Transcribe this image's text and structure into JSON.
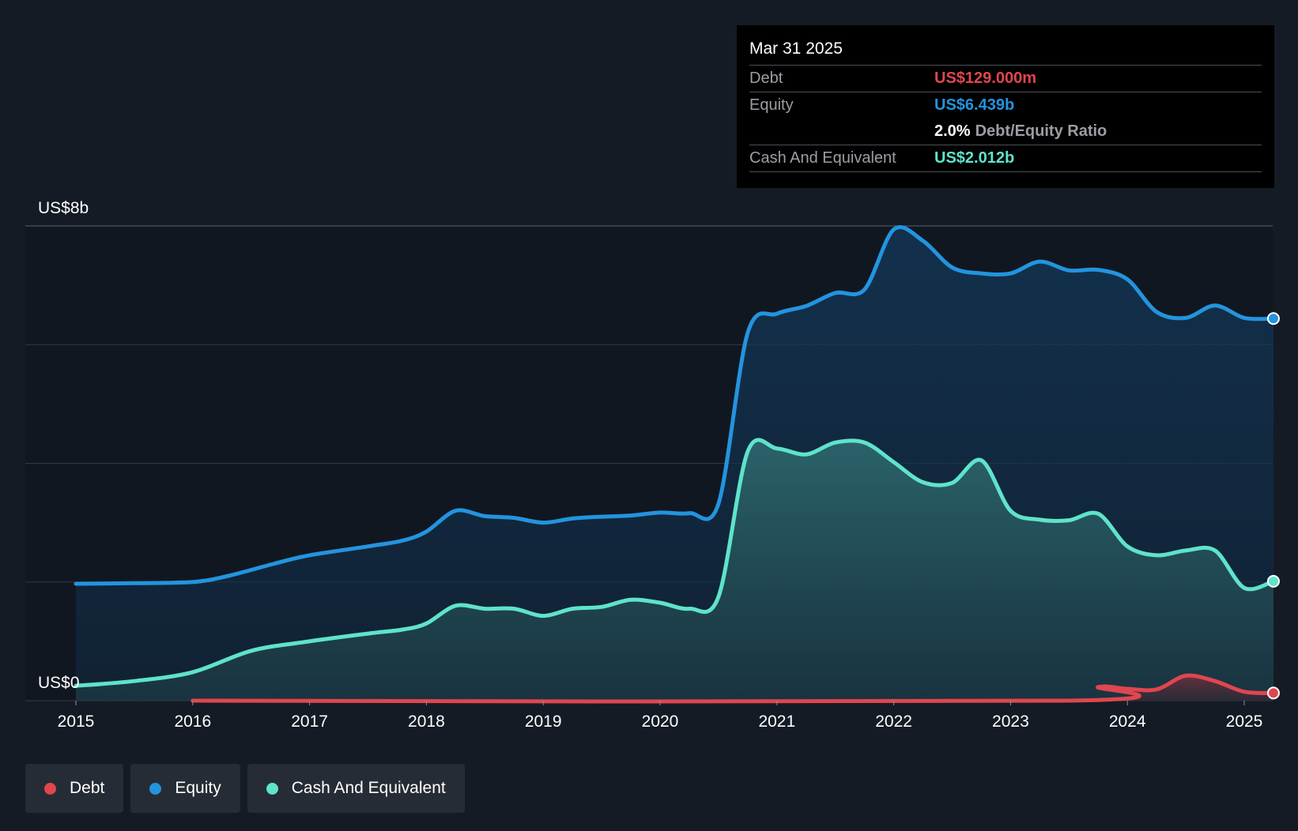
{
  "chart_data": {
    "type": "area",
    "title": "",
    "y_axis_labels": [
      "US$8b",
      "US$0"
    ],
    "ylim": [
      0,
      8
    ],
    "y_unit": "US$ billions",
    "xlim": [
      2015,
      2025.25
    ],
    "x_ticks": [
      "2015",
      "2016",
      "2017",
      "2018",
      "2019",
      "2020",
      "2021",
      "2022",
      "2023",
      "2024",
      "2025"
    ],
    "series": [
      {
        "name": "Equity",
        "color": "#2394df",
        "points": [
          [
            2015,
            1.97
          ],
          [
            2015.5,
            1.98
          ],
          [
            2016,
            2.0
          ],
          [
            2016.3,
            2.1
          ],
          [
            2016.7,
            2.31
          ],
          [
            2017,
            2.45
          ],
          [
            2017.5,
            2.6
          ],
          [
            2017.8,
            2.7
          ],
          [
            2018,
            2.85
          ],
          [
            2018.25,
            3.2
          ],
          [
            2018.5,
            3.11
          ],
          [
            2018.75,
            3.08
          ],
          [
            2019,
            3.0
          ],
          [
            2019.25,
            3.07
          ],
          [
            2019.5,
            3.1
          ],
          [
            2019.75,
            3.12
          ],
          [
            2020,
            3.17
          ],
          [
            2020.25,
            3.16
          ],
          [
            2020.5,
            3.32
          ],
          [
            2020.75,
            6.2
          ],
          [
            2021,
            6.52
          ],
          [
            2021.25,
            6.65
          ],
          [
            2021.5,
            6.87
          ],
          [
            2021.75,
            6.93
          ],
          [
            2022,
            7.94
          ],
          [
            2022.25,
            7.75
          ],
          [
            2022.5,
            7.3
          ],
          [
            2022.75,
            7.2
          ],
          [
            2023,
            7.2
          ],
          [
            2023.25,
            7.4
          ],
          [
            2023.5,
            7.25
          ],
          [
            2023.75,
            7.26
          ],
          [
            2024,
            7.1
          ],
          [
            2024.25,
            6.55
          ],
          [
            2024.5,
            6.45
          ],
          [
            2024.75,
            6.66
          ],
          [
            2025,
            6.45
          ],
          [
            2025.25,
            6.439
          ]
        ]
      },
      {
        "name": "Cash And Equivalent",
        "color": "#5fe3cb",
        "points": [
          [
            2015,
            0.25
          ],
          [
            2015.5,
            0.33
          ],
          [
            2016,
            0.48
          ],
          [
            2016.5,
            0.84
          ],
          [
            2017,
            1.0
          ],
          [
            2017.5,
            1.13
          ],
          [
            2017.8,
            1.2
          ],
          [
            2018,
            1.3
          ],
          [
            2018.25,
            1.6
          ],
          [
            2018.5,
            1.55
          ],
          [
            2018.75,
            1.55
          ],
          [
            2019,
            1.43
          ],
          [
            2019.25,
            1.55
          ],
          [
            2019.5,
            1.58
          ],
          [
            2019.75,
            1.7
          ],
          [
            2020,
            1.65
          ],
          [
            2020.25,
            1.55
          ],
          [
            2020.5,
            1.75
          ],
          [
            2020.75,
            4.2
          ],
          [
            2021,
            4.25
          ],
          [
            2021.25,
            4.15
          ],
          [
            2021.5,
            4.35
          ],
          [
            2021.75,
            4.35
          ],
          [
            2022,
            4.02
          ],
          [
            2022.25,
            3.68
          ],
          [
            2022.5,
            3.67
          ],
          [
            2022.75,
            4.05
          ],
          [
            2023,
            3.2
          ],
          [
            2023.25,
            3.05
          ],
          [
            2023.5,
            3.04
          ],
          [
            2023.75,
            3.15
          ],
          [
            2024,
            2.6
          ],
          [
            2024.25,
            2.45
          ],
          [
            2024.5,
            2.53
          ],
          [
            2024.75,
            2.53
          ],
          [
            2025,
            1.9
          ],
          [
            2025.25,
            2.012
          ]
        ]
      },
      {
        "name": "Debt",
        "color": "#e0464e",
        "points": [
          [
            2016,
            0.0
          ],
          [
            2023.5,
            0.0
          ],
          [
            2023.75,
            0.23
          ],
          [
            2024,
            0.2
          ],
          [
            2024.25,
            0.19
          ],
          [
            2024.5,
            0.42
          ],
          [
            2024.75,
            0.33
          ],
          [
            2025,
            0.15
          ],
          [
            2025.25,
            0.129
          ]
        ]
      }
    ],
    "legend": [
      "Debt",
      "Equity",
      "Cash And Equivalent"
    ]
  },
  "tooltip": {
    "date": "Mar 31 2025",
    "debt_label": "Debt",
    "debt_value": "US$129.000m",
    "equity_label": "Equity",
    "equity_value": "US$6.439b",
    "ratio_value": "2.0%",
    "ratio_label": "Debt/Equity Ratio",
    "cash_label": "Cash And Equivalent",
    "cash_value": "US$2.012b"
  },
  "legend": {
    "debt": "Debt",
    "equity": "Equity",
    "cash": "Cash And Equivalent"
  },
  "colors": {
    "debt": "#e0464e",
    "equity": "#2394df",
    "cash": "#5fe3cb",
    "background": "#151b24",
    "grid": "#3a414b"
  }
}
